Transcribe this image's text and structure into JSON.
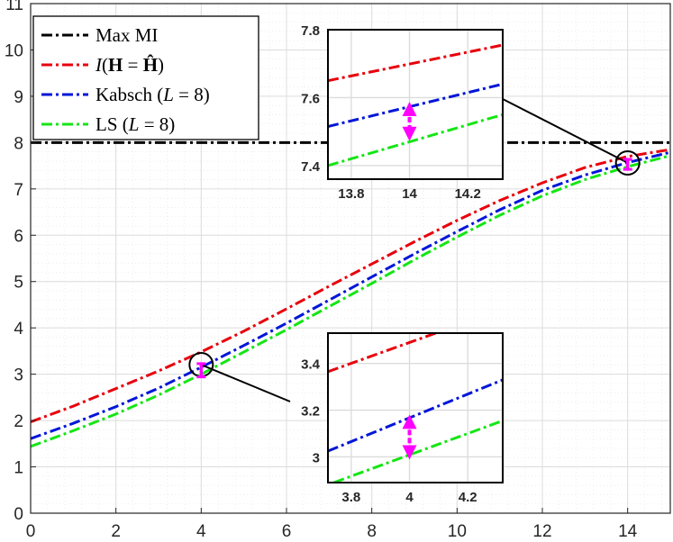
{
  "chart_data": {
    "type": "line",
    "title": "",
    "xlabel": "",
    "ylabel": "",
    "xlim": [
      0,
      15
    ],
    "ylim": [
      0,
      11
    ],
    "x_ticks": [
      "0",
      "2",
      "4",
      "6",
      "8",
      "10",
      "12",
      "14"
    ],
    "y_ticks": [
      "0",
      "1",
      "2",
      "3",
      "4",
      "5",
      "6",
      "7",
      "8",
      "9",
      "10",
      "11"
    ],
    "grid": true,
    "legend_position": "top-left",
    "series": [
      {
        "name": "Max MI",
        "style": "dashdot",
        "color": "#000000",
        "x": [
          0,
          15
        ],
        "y": [
          8,
          8
        ]
      },
      {
        "name": "I(H = Ĥ)",
        "style": "dashdot",
        "color": "#e8000b",
        "x": [
          0,
          1,
          2,
          3,
          4,
          5,
          6,
          7,
          8,
          9,
          10,
          11,
          12,
          13,
          14,
          15
        ],
        "y": [
          1.97,
          2.31,
          2.69,
          3.07,
          3.48,
          3.93,
          4.41,
          4.9,
          5.38,
          5.86,
          6.32,
          6.75,
          7.13,
          7.46,
          7.7,
          7.85
        ]
      },
      {
        "name": "Kabsch (L = 8)",
        "style": "dashdot",
        "color": "#0016d9",
        "x": [
          0,
          1,
          2,
          3,
          4,
          5,
          6,
          7,
          8,
          9,
          10,
          11,
          12,
          13,
          14,
          15
        ],
        "y": [
          1.61,
          1.94,
          2.3,
          2.7,
          3.15,
          3.62,
          4.1,
          4.6,
          5.1,
          5.6,
          6.08,
          6.55,
          6.97,
          7.3,
          7.57,
          7.79
        ]
      },
      {
        "name": "LS (L = 8)",
        "style": "dashdot",
        "color": "#14e614",
        "x": [
          0,
          1,
          2,
          3,
          4,
          5,
          6,
          7,
          8,
          9,
          10,
          11,
          12,
          13,
          14,
          15
        ],
        "y": [
          1.44,
          1.78,
          2.14,
          2.55,
          3.0,
          3.48,
          3.96,
          4.46,
          4.96,
          5.47,
          5.96,
          6.43,
          6.85,
          7.2,
          7.48,
          7.72
        ]
      }
    ],
    "legend": [
      {
        "key": "max",
        "segments": [
          {
            "text": "Max MI",
            "italic": false
          }
        ]
      },
      {
        "key": "ideal",
        "segments": [
          {
            "text": "I",
            "italic": true
          },
          {
            "text": "(",
            "italic": false
          },
          {
            "text": "H",
            "bold": true
          },
          {
            "text": " = ",
            "italic": false
          },
          {
            "text": "Ĥ",
            "bold": true
          },
          {
            "text": ")",
            "italic": false
          }
        ]
      },
      {
        "key": "kabsch",
        "segments": [
          {
            "text": "Kabsch (",
            "italic": false
          },
          {
            "text": "L",
            "italic": true
          },
          {
            "text": " = 8)",
            "italic": false
          }
        ]
      },
      {
        "key": "ls",
        "segments": [
          {
            "text": "LS (",
            "italic": false
          },
          {
            "text": "L",
            "italic": true
          },
          {
            "text": " = 8)",
            "italic": false
          }
        ]
      }
    ],
    "insets": [
      {
        "name": "zoom-at-14",
        "xlim": [
          13.72,
          14.32
        ],
        "ylim": [
          7.36,
          7.8
        ],
        "x_ticks": [
          {
            "v": 13.8,
            "label": "13.8"
          },
          {
            "v": 14,
            "label": "14"
          },
          {
            "v": 14.2,
            "label": "14.2"
          }
        ],
        "y_ticks": [
          {
            "v": 7.4,
            "label": "7.4"
          },
          {
            "v": 7.6,
            "label": "7.6"
          },
          {
            "v": 7.8,
            "label": "7.8"
          }
        ],
        "gap_x": 14,
        "gap_from": 7.48,
        "gap_to": 7.58,
        "series": [
          {
            "color": "#e8000b",
            "x": [
              13.72,
              14.32
            ],
            "y": [
              7.65,
              7.755
            ]
          },
          {
            "color": "#0016d9",
            "x": [
              13.72,
              14.32
            ],
            "y": [
              7.515,
              7.64
            ]
          },
          {
            "color": "#14e614",
            "x": [
              13.72,
              14.32
            ],
            "y": [
              7.4,
              7.55
            ]
          }
        ]
      },
      {
        "name": "zoom-at-4",
        "xlim": [
          3.72,
          4.32
        ],
        "ylim": [
          2.89,
          3.53
        ],
        "x_ticks": [
          {
            "v": 3.8,
            "label": "3.8"
          },
          {
            "v": 4,
            "label": "4"
          },
          {
            "v": 4.2,
            "label": "4.2"
          }
        ],
        "y_ticks": [
          {
            "v": 3.0,
            "label": "3"
          },
          {
            "v": 3.2,
            "label": "3.2"
          },
          {
            "v": 3.4,
            "label": "3.4"
          }
        ],
        "gap_x": 4,
        "gap_from": 3.0,
        "gap_to": 3.17,
        "series": [
          {
            "color": "#e8000b",
            "x": [
              3.72,
              4.09
            ],
            "y": [
              3.365,
              3.53
            ]
          },
          {
            "color": "#0016d9",
            "x": [
              3.72,
              4.32
            ],
            "y": [
              3.025,
              3.33
            ]
          },
          {
            "color": "#14e614",
            "x": [
              3.74,
              4.32
            ],
            "y": [
              2.89,
              3.155
            ]
          }
        ]
      }
    ],
    "colors": {
      "gap_marker": "#ff00ff",
      "grid": "#dcdcdc",
      "axis": "#262626"
    }
  }
}
